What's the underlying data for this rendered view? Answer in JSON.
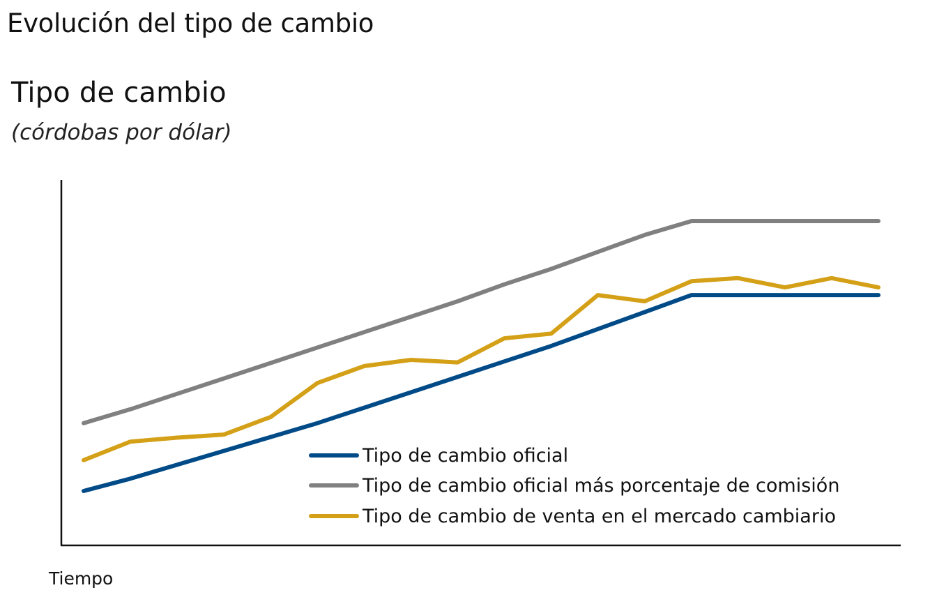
{
  "page": {
    "title": "Evolución del tipo de cambio"
  },
  "chart_data": {
    "type": "line",
    "title": "Tipo de cambio",
    "subtitle": "(córdobas por dólar)",
    "xlabel": "Tiempo",
    "ylabel": "",
    "x": [
      0,
      1,
      2,
      3,
      4,
      5,
      6,
      7,
      8,
      9,
      10,
      11,
      12,
      13,
      14,
      15,
      16,
      17
    ],
    "ylim": [
      0,
      100
    ],
    "grid": false,
    "legend_position": "bottom-right",
    "series": [
      {
        "name": "Tipo de cambio oficial",
        "color": "#004B87",
        "values": [
          15.5,
          19.5,
          24,
          28.5,
          33,
          37.5,
          42.5,
          47.5,
          52.5,
          57.5,
          62.5,
          68,
          73.5,
          79,
          79,
          79,
          79,
          79
        ]
      },
      {
        "name": "Tipo de cambio oficial más porcentaje de comisión",
        "color": "#808080",
        "values": [
          37.5,
          42,
          47,
          52,
          57,
          62,
          67,
          72,
          77,
          82.5,
          87.5,
          93,
          98.5,
          103,
          103,
          103,
          103,
          103
        ]
      },
      {
        "name": "Tipo de cambio de venta en el mercado cambiario",
        "color": "#D4A017",
        "values": [
          25.5,
          31.5,
          32.8,
          33.8,
          39.5,
          50.5,
          56,
          58,
          57.2,
          65,
          66.5,
          79,
          77,
          83.5,
          84.5,
          81.5,
          84.5,
          81.5
        ]
      }
    ]
  }
}
